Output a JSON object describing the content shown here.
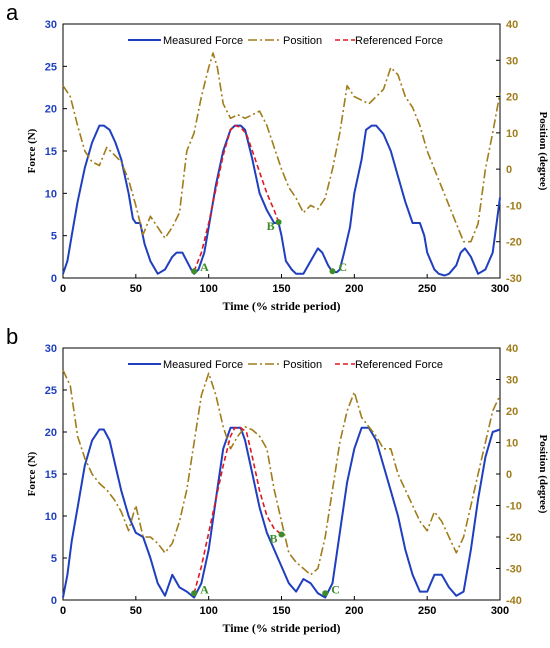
{
  "chart_data": [
    {
      "type": "line",
      "panel_label": "a",
      "xlabel": "Time (% stride period)",
      "ylabel": "Force (N)",
      "ylabel_right": "Position (degree)",
      "xlim": [
        0,
        300
      ],
      "ylim": [
        0,
        30
      ],
      "ylim_right": [
        -30,
        40
      ],
      "xticks": [
        0,
        50,
        100,
        150,
        200,
        250,
        300
      ],
      "yticks": [
        0,
        5,
        10,
        15,
        20,
        25,
        30
      ],
      "yticks_right": [
        -30,
        -20,
        -10,
        0,
        10,
        20,
        30,
        40
      ],
      "legend": {
        "placement": "top-center"
      },
      "series": [
        {
          "name": "Measured Force",
          "axis": "left",
          "color": "#1f3fbf",
          "style": "solid",
          "x": [
            0,
            3,
            6,
            10,
            15,
            20,
            25,
            28,
            32,
            36,
            40,
            45,
            48,
            50,
            53,
            56,
            60,
            65,
            70,
            75,
            78,
            82,
            85,
            88,
            90,
            93,
            97,
            100,
            105,
            110,
            115,
            118,
            122,
            125,
            130,
            135,
            140,
            145,
            148,
            150,
            153,
            157,
            160,
            165,
            170,
            175,
            178,
            182,
            185,
            188,
            190,
            193,
            197,
            200,
            205,
            208,
            212,
            215,
            220,
            225,
            230,
            235,
            240,
            245,
            248,
            250,
            255,
            258,
            262,
            265,
            270,
            273,
            276,
            280,
            285,
            290,
            295,
            300
          ],
          "y": [
            0.5,
            2,
            5,
            9,
            13,
            16,
            18,
            18,
            17.5,
            16,
            14,
            10,
            7,
            6.5,
            6.5,
            4,
            2,
            0.5,
            1,
            2.5,
            3,
            3,
            2,
            1,
            0.5,
            1,
            3,
            6,
            11,
            15,
            17.5,
            18,
            18,
            17.5,
            14,
            10,
            8,
            6.5,
            6.5,
            5,
            2,
            1,
            0.5,
            0.5,
            2,
            3.5,
            3,
            1.5,
            0.7,
            0.7,
            1,
            3,
            6,
            10,
            14,
            17.5,
            18,
            18,
            17,
            15,
            12,
            9,
            6.5,
            6.5,
            5,
            3,
            1,
            0.5,
            0.3,
            0.5,
            1.5,
            3,
            3.5,
            2.5,
            0.5,
            1,
            3,
            9.5
          ]
        },
        {
          "name": "Position",
          "axis": "right",
          "color": "#a07c1a",
          "style": "dash-dot",
          "x": [
            0,
            5,
            10,
            15,
            20,
            25,
            30,
            35,
            40,
            45,
            50,
            55,
            60,
            65,
            70,
            75,
            80,
            85,
            90,
            95,
            100,
            103,
            106,
            110,
            115,
            120,
            125,
            130,
            135,
            140,
            145,
            150,
            155,
            160,
            165,
            170,
            175,
            180,
            185,
            190,
            195,
            200,
            205,
            210,
            215,
            220,
            225,
            230,
            235,
            240,
            245,
            250,
            255,
            260,
            265,
            270,
            275,
            280,
            285,
            290,
            295,
            300
          ],
          "y": [
            23,
            20,
            12,
            5,
            2,
            1,
            6,
            4,
            2,
            -3,
            -10,
            -18,
            -13,
            -16,
            -19,
            -16,
            -12,
            5,
            10,
            20,
            28,
            32,
            28,
            18,
            14,
            15,
            14,
            15,
            16,
            12,
            6,
            0,
            -5,
            -8,
            -12,
            -10,
            -11,
            -8,
            0,
            10,
            23,
            20,
            19,
            18,
            20,
            22,
            28,
            26,
            20,
            17,
            12,
            5,
            0,
            -5,
            -10,
            -15,
            -20,
            -20,
            -15,
            0,
            10,
            21
          ]
        },
        {
          "name": "Referenced Force",
          "axis": "left",
          "color": "#e0191e",
          "style": "dashed",
          "x": [
            90,
            95,
            100,
            105,
            110,
            115,
            118,
            122,
            126,
            130,
            135,
            140,
            145,
            148
          ],
          "y": [
            0.8,
            3,
            6.5,
            10.5,
            14.5,
            17.5,
            18,
            17.8,
            17,
            15,
            12.5,
            10,
            8,
            6.6
          ]
        }
      ],
      "annotations": [
        {
          "label": "A",
          "x": 90,
          "y": 0.8
        },
        {
          "label": "B",
          "x": 148,
          "y": 6.6
        },
        {
          "label": "C",
          "x": 185,
          "y": 0.8
        }
      ]
    },
    {
      "type": "line",
      "panel_label": "b",
      "xlabel": "Time (% stride period)",
      "ylabel": "Force (N)",
      "ylabel_right": "Position (degree)",
      "xlim": [
        0,
        300
      ],
      "ylim": [
        0,
        30
      ],
      "ylim_right": [
        -40,
        40
      ],
      "xticks": [
        0,
        50,
        100,
        150,
        200,
        250,
        300
      ],
      "yticks": [
        0,
        5,
        10,
        15,
        20,
        25,
        30
      ],
      "yticks_right": [
        -40,
        -30,
        -20,
        -10,
        0,
        10,
        20,
        30,
        40
      ],
      "legend": {
        "placement": "top-center"
      },
      "series": [
        {
          "name": "Measured Force",
          "axis": "left",
          "color": "#1f3fbf",
          "style": "solid",
          "x": [
            0,
            3,
            6,
            10,
            15,
            20,
            25,
            28,
            32,
            36,
            40,
            45,
            50,
            55,
            60,
            65,
            70,
            75,
            80,
            85,
            90,
            95,
            100,
            105,
            110,
            115,
            118,
            122,
            125,
            130,
            135,
            140,
            145,
            150,
            155,
            160,
            165,
            170,
            175,
            180,
            185,
            190,
            195,
            200,
            205,
            210,
            215,
            220,
            225,
            230,
            235,
            240,
            245,
            250,
            255,
            260,
            265,
            270,
            275,
            280,
            285,
            290,
            295,
            300
          ],
          "y": [
            0.3,
            3,
            7,
            11,
            16,
            19,
            20.3,
            20.3,
            19,
            16,
            13,
            10,
            8,
            7.5,
            5,
            2,
            0.5,
            3,
            1.5,
            1,
            0.3,
            2,
            6,
            12,
            18,
            20.5,
            20.5,
            20.5,
            19,
            15,
            11,
            8,
            6,
            4,
            2,
            1,
            2.5,
            2,
            0.8,
            0.3,
            2,
            8,
            14,
            18,
            20.5,
            20.5,
            19,
            16,
            13,
            10,
            6,
            3,
            1,
            1,
            3,
            3,
            1.5,
            0.5,
            1,
            6,
            12,
            17,
            20,
            20.3
          ]
        },
        {
          "name": "Position",
          "axis": "right",
          "color": "#a07c1a",
          "style": "dash-dot",
          "x": [
            0,
            5,
            10,
            15,
            20,
            25,
            30,
            35,
            40,
            45,
            50,
            55,
            60,
            65,
            70,
            75,
            80,
            85,
            90,
            95,
            100,
            105,
            110,
            115,
            120,
            125,
            130,
            135,
            140,
            145,
            150,
            155,
            160,
            165,
            170,
            175,
            180,
            185,
            190,
            195,
            200,
            205,
            210,
            215,
            220,
            225,
            230,
            235,
            240,
            245,
            250,
            255,
            260,
            265,
            270,
            275,
            280,
            285,
            290,
            295,
            300
          ],
          "y": [
            33,
            28,
            12,
            5,
            0,
            -3,
            -5,
            -8,
            -12,
            -18,
            -10,
            -20,
            -20,
            -22,
            -25,
            -22,
            -15,
            -5,
            10,
            25,
            32,
            25,
            15,
            8,
            12,
            15,
            14,
            12,
            8,
            -5,
            -15,
            -25,
            -28,
            -30,
            -32,
            -30,
            -20,
            -5,
            10,
            20,
            26,
            18,
            15,
            12,
            8,
            8,
            0,
            -5,
            -10,
            -15,
            -18,
            -12,
            -15,
            -20,
            -25,
            -20,
            -10,
            0,
            10,
            20,
            25
          ]
        },
        {
          "name": "Referenced Force",
          "axis": "left",
          "color": "#e0191e",
          "style": "dashed",
          "x": [
            90,
            95,
            100,
            105,
            110,
            115,
            118,
            122,
            126,
            130,
            135,
            140,
            145,
            150
          ],
          "y": [
            0.8,
            4,
            8,
            12,
            16,
            19.5,
            20.5,
            20.5,
            20,
            17,
            13,
            10,
            8.5,
            7.8
          ]
        }
      ],
      "annotations": [
        {
          "label": "A",
          "x": 90,
          "y": 0.8
        },
        {
          "label": "B",
          "x": 150,
          "y": 7.8
        },
        {
          "label": "C",
          "x": 180,
          "y": 0.8
        }
      ]
    }
  ]
}
